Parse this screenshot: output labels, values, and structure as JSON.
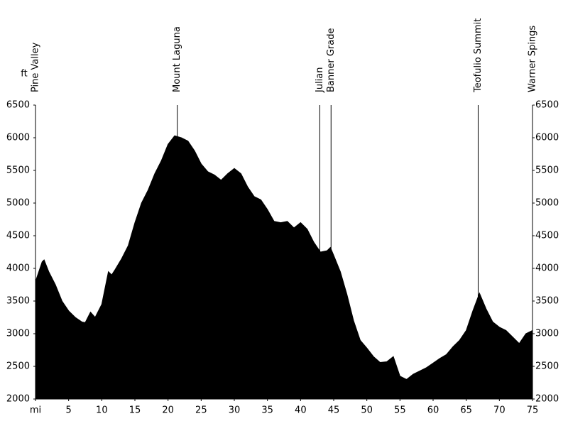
{
  "chart_data": {
    "type": "area",
    "y_label": "ft",
    "color": "#000000",
    "x": [
      0,
      1,
      1.3,
      2,
      3,
      4,
      5,
      6,
      7,
      7.5,
      8.3,
      9,
      10,
      11,
      11.5,
      12,
      13,
      14,
      15,
      16,
      17,
      18,
      19,
      20,
      21,
      22,
      23,
      24,
      25,
      26,
      27,
      28,
      29,
      30,
      31,
      32,
      33,
      34,
      35,
      36,
      37,
      38,
      39,
      40,
      41,
      42,
      43,
      44,
      44.5,
      45,
      46,
      47,
      48,
      49,
      50,
      51,
      52,
      53,
      54,
      54.5,
      55,
      56,
      57,
      58,
      59,
      60,
      61,
      62,
      63,
      64,
      65,
      66,
      67,
      68,
      69,
      70,
      71,
      72,
      73,
      74,
      75
    ],
    "values": [
      3800,
      4100,
      4130,
      3950,
      3750,
      3500,
      3350,
      3250,
      3180,
      3170,
      3330,
      3250,
      3450,
      3950,
      3900,
      3980,
      4150,
      4350,
      4700,
      5000,
      5200,
      5450,
      5650,
      5900,
      6030,
      6000,
      5950,
      5800,
      5600,
      5480,
      5430,
      5350,
      5450,
      5530,
      5450,
      5250,
      5100,
      5050,
      4900,
      4720,
      4700,
      4720,
      4620,
      4700,
      4600,
      4400,
      4250,
      4270,
      4320,
      4200,
      3950,
      3600,
      3200,
      2900,
      2780,
      2650,
      2560,
      2570,
      2650,
      2500,
      2350,
      2300,
      2380,
      2430,
      2480,
      2550,
      2620,
      2680,
      2800,
      2900,
      3050,
      3350,
      3620,
      3380,
      3180,
      3100,
      3050,
      2950,
      2850,
      3000,
      3050
    ],
    "xlim": [
      0,
      75
    ],
    "xticks": [
      {
        "value": 0,
        "label": "mi"
      },
      5,
      10,
      15,
      20,
      25,
      30,
      35,
      40,
      45,
      50,
      55,
      60,
      65,
      70,
      75
    ],
    "ylim": [
      2000,
      6500
    ],
    "yticks": [
      2000,
      2500,
      3000,
      3500,
      4000,
      4500,
      5000,
      5500,
      6000,
      6500
    ],
    "waypoints": [
      {
        "label": "Pine Valley",
        "x": 0
      },
      {
        "label": "Mount Laguna",
        "x": 21.4
      },
      {
        "label": "Julian",
        "x": 42.9
      },
      {
        "label": "Banner Grade",
        "x": 44.6
      },
      {
        "label": "Teofulio Summit",
        "x": 66.8
      },
      {
        "label": "Warner Spings",
        "x": 75
      }
    ]
  }
}
